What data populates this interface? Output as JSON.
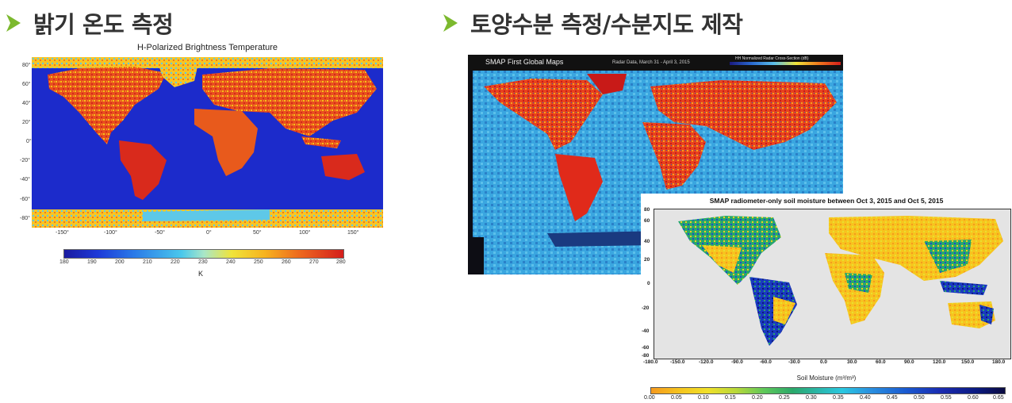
{
  "sections": {
    "left_title": "밝기 온도 측정",
    "right_title": "토양수분 측정/수분지도 제작"
  },
  "colors": {
    "arrow": "#7cb92e",
    "ocean": "#1a2ecc"
  },
  "brightness_map": {
    "title": "H-Polarized Brightness Temperature",
    "y_ticks": [
      "80°",
      "60°",
      "40°",
      "20°",
      "0°",
      "-20°",
      "-40°",
      "-60°",
      "-80°"
    ],
    "x_ticks": [
      "-150°",
      "-100°",
      "-50°",
      "0°",
      "50°",
      "100°",
      "150°"
    ],
    "colorbar_ticks": [
      "180",
      "190",
      "200",
      "210",
      "220",
      "230",
      "240",
      "250",
      "260",
      "270",
      "280"
    ],
    "unit": "K"
  },
  "radar_map": {
    "title": "SMAP First Global Maps",
    "subtitle": "Radar Data, March 31 - April 3, 2015",
    "legend_label": "HH Normalized Radar Cross-Section (dB)"
  },
  "soil_map": {
    "title": "SMAP radiometer-only soil moisture between Oct 3, 2015 and Oct 5, 2015",
    "y_ticks": [
      "80",
      "60",
      "40",
      "20",
      "0",
      "-20",
      "-40",
      "-60",
      "-80"
    ],
    "x_ticks": [
      "-180.0",
      "-150.0",
      "-120.0",
      "-90.0",
      "-60.0",
      "-30.0",
      "0.0",
      "30.0",
      "60.0",
      "90.0",
      "120.0",
      "150.0",
      "180.0"
    ],
    "colorbar_label": "Soil Moisture (m³/m³)",
    "colorbar_ticks": [
      "0.00",
      "0.05",
      "0.10",
      "0.15",
      "0.20",
      "0.25",
      "0.30",
      "0.35",
      "0.40",
      "0.45",
      "0.50",
      "0.55",
      "0.60",
      "0.65"
    ]
  }
}
